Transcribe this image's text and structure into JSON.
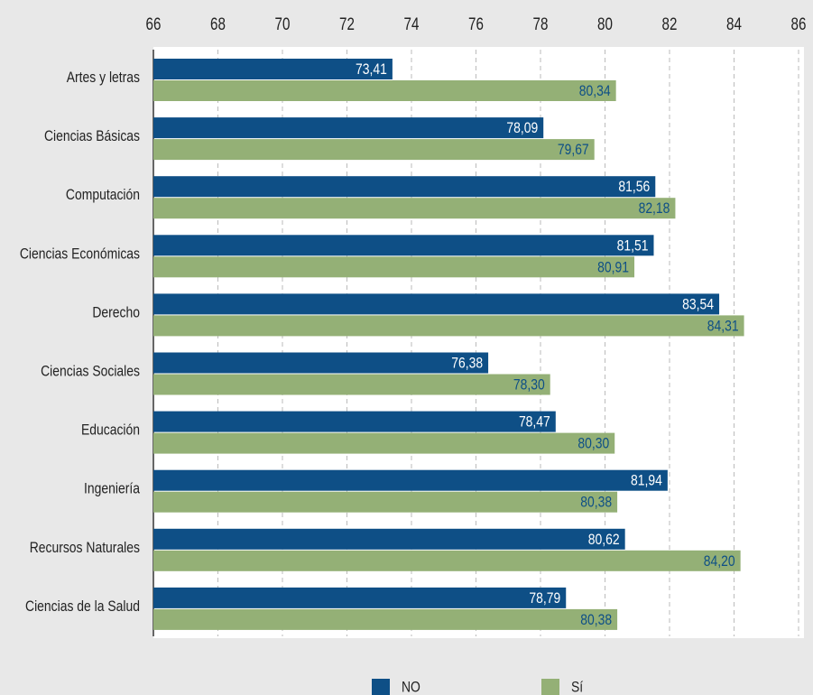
{
  "chart_data": {
    "type": "hbar",
    "categories": [
      "Artes y letras",
      "Ciencias Básicas",
      "Computación",
      "Ciencias Económicas",
      "Derecho",
      "Ciencias Sociales",
      "Educación",
      "Ingeniería",
      "Recursos Naturales",
      "Ciencias de la Salud"
    ],
    "series": [
      {
        "name": "NO",
        "color": "#0e4f86",
        "values": [
          73.41,
          78.09,
          81.56,
          81.51,
          83.54,
          76.38,
          78.47,
          81.94,
          80.62,
          78.79
        ],
        "value_labels": [
          "73,41",
          "78,09",
          "81,56",
          "81,51",
          "83,54",
          "76,38",
          "78,47",
          "81,94",
          "80,62",
          "78,79"
        ]
      },
      {
        "name": "Sí",
        "color": "#94b076",
        "values": [
          80.34,
          79.67,
          82.18,
          80.91,
          84.31,
          78.3,
          80.3,
          80.38,
          84.2,
          80.38
        ],
        "value_labels": [
          "80,34",
          "79,67",
          "82,18",
          "80,91",
          "84,31",
          "78,30",
          "80,30",
          "80,38",
          "84,20",
          "80,38"
        ]
      }
    ],
    "xlim": [
      66,
      86
    ],
    "xticks": [
      66,
      68,
      70,
      72,
      74,
      76,
      78,
      80,
      82,
      84,
      86
    ],
    "grid": true,
    "legend": "bottom"
  }
}
